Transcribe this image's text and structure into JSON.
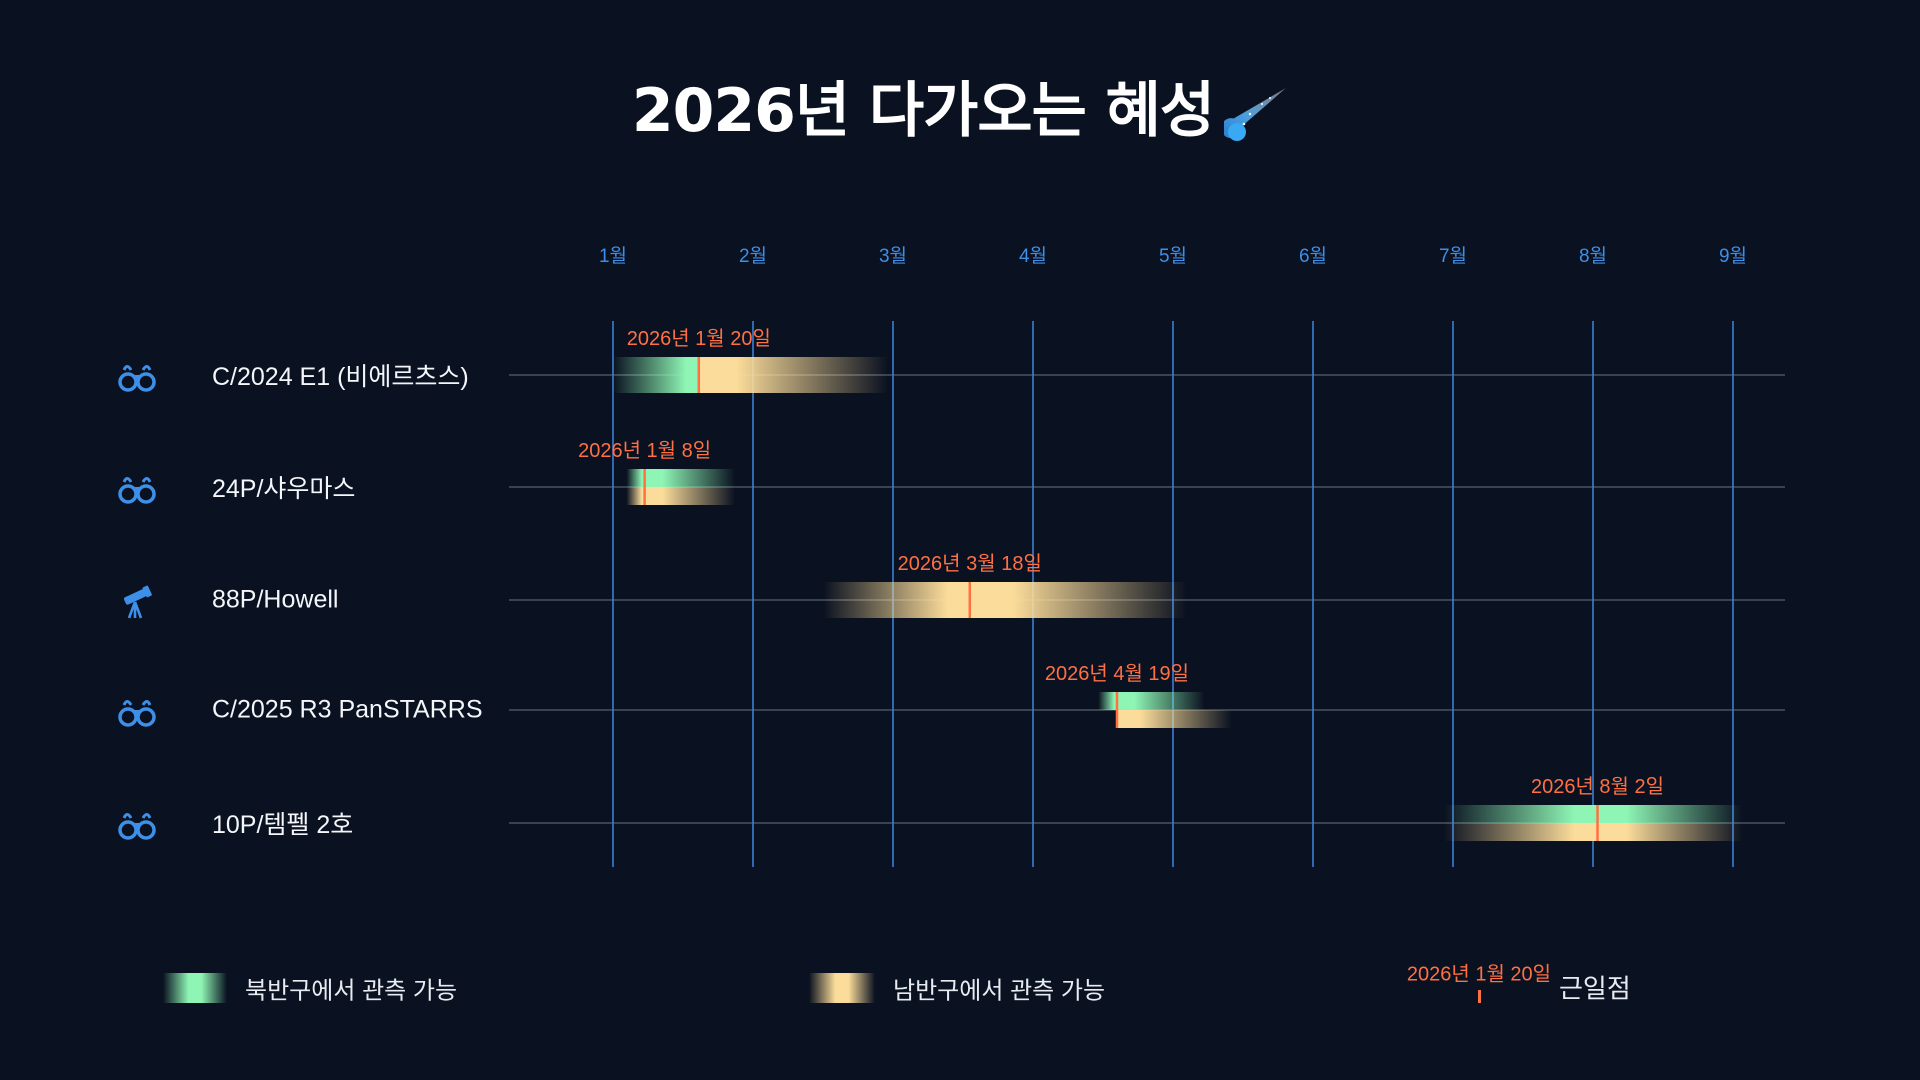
{
  "title": "2026년 다가오는 혜성",
  "title_icon": "comet-icon",
  "colors": {
    "background": "#0a1120",
    "northern": "#8ef5b4",
    "southern": "#fbdc9a",
    "perihelion": "#ff7043",
    "month_grid": "#3a7fd8",
    "month_label": "#3d8fe8",
    "row_line": "#3a4250",
    "icon": "#3d8fe8"
  },
  "chart_data": {
    "type": "timeline",
    "year": 2026,
    "x_ticks": [
      "1월",
      "2월",
      "3월",
      "4월",
      "5월",
      "6월",
      "7월",
      "8월",
      "9월"
    ],
    "grid": true,
    "comets": [
      {
        "name": "C/2024 E1 (비에르츠스)",
        "icon": "binoculars-icon",
        "perihelion": "2026-01-20",
        "perihelion_label": "2026년 1월 20일",
        "northern": [
          "2026-01-01",
          "2026-01-20"
        ],
        "southern": [
          "2026-01-20",
          "2026-02-28"
        ]
      },
      {
        "name": "24P/샤우마스",
        "icon": "binoculars-icon",
        "perihelion": "2026-01-08",
        "perihelion_label": "2026년 1월 8일",
        "northern": [
          "2026-01-04",
          "2026-01-28"
        ],
        "southern": [
          "2026-01-04",
          "2026-01-28"
        ]
      },
      {
        "name": "88P/Howell",
        "icon": "telescope-icon",
        "perihelion": "2026-03-18",
        "perihelion_label": "2026년 3월 18일",
        "northern": null,
        "southern": [
          "2026-02-15",
          "2026-05-04"
        ]
      },
      {
        "name": "C/2025 R3 PanSTARRS",
        "icon": "binoculars-icon",
        "perihelion": "2026-04-19",
        "perihelion_label": "2026년 4월 19일",
        "northern": [
          "2026-04-15",
          "2026-05-08"
        ],
        "southern": [
          "2026-04-19",
          "2026-05-14"
        ]
      },
      {
        "name": "10P/템펠 2호",
        "icon": "binoculars-icon",
        "perihelion": "2026-08-02",
        "perihelion_label": "2026년 8월 2일",
        "northern": [
          "2026-06-29",
          "2026-09-03"
        ],
        "southern": [
          "2026-06-29",
          "2026-09-03"
        ]
      }
    ]
  },
  "legend": {
    "northern": "북반구에서 관측 가능",
    "southern": "남반구에서 관측 가능",
    "perihelion_example": "2026년 1월 20일",
    "perihelion": "근일점"
  }
}
